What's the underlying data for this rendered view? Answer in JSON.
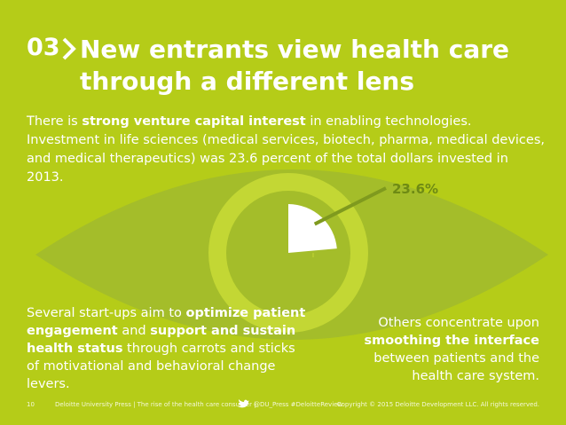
{
  "header": {
    "number": "03",
    "title": [
      "New entrants view health care",
      "through a different lens"
    ]
  },
  "intro": [
    {
      "text": "There is "
    },
    {
      "text": "strong venture capital interest",
      "bold": true
    },
    {
      "text": " in enabling technologies. Investment in life sciences (medical services, biotech, pharma, medical devices, and medical therapeutics) was 23.6 percent of the total dollars invested in 2013."
    }
  ],
  "chart_data": {
    "type": "pie",
    "values": [
      23.6
    ],
    "value_labels": [
      "23.6%"
    ],
    "color": "#ffffff"
  },
  "left_text": [
    {
      "text": "Several start-ups aim to "
    },
    {
      "text": "optimize patient engagement",
      "bold": true
    },
    {
      "text": " and "
    },
    {
      "text": "support and sustain health status",
      "bold": true
    },
    {
      "text": " through carrots and sticks of motivational and behavioral change levers."
    }
  ],
  "right_text": [
    {
      "text": "Others concentrate upon "
    },
    {
      "text": "smoothing the interface",
      "bold": true
    },
    {
      "text": " between patients and the health care system."
    }
  ],
  "footer": {
    "page": "10",
    "source": "Deloitte University Press | The rise of the health care consumer |",
    "handle": "@DU_Press #DeloitteReview",
    "copyright": "Copyright © 2015 Deloitte Development LLC. All rights reserved."
  }
}
